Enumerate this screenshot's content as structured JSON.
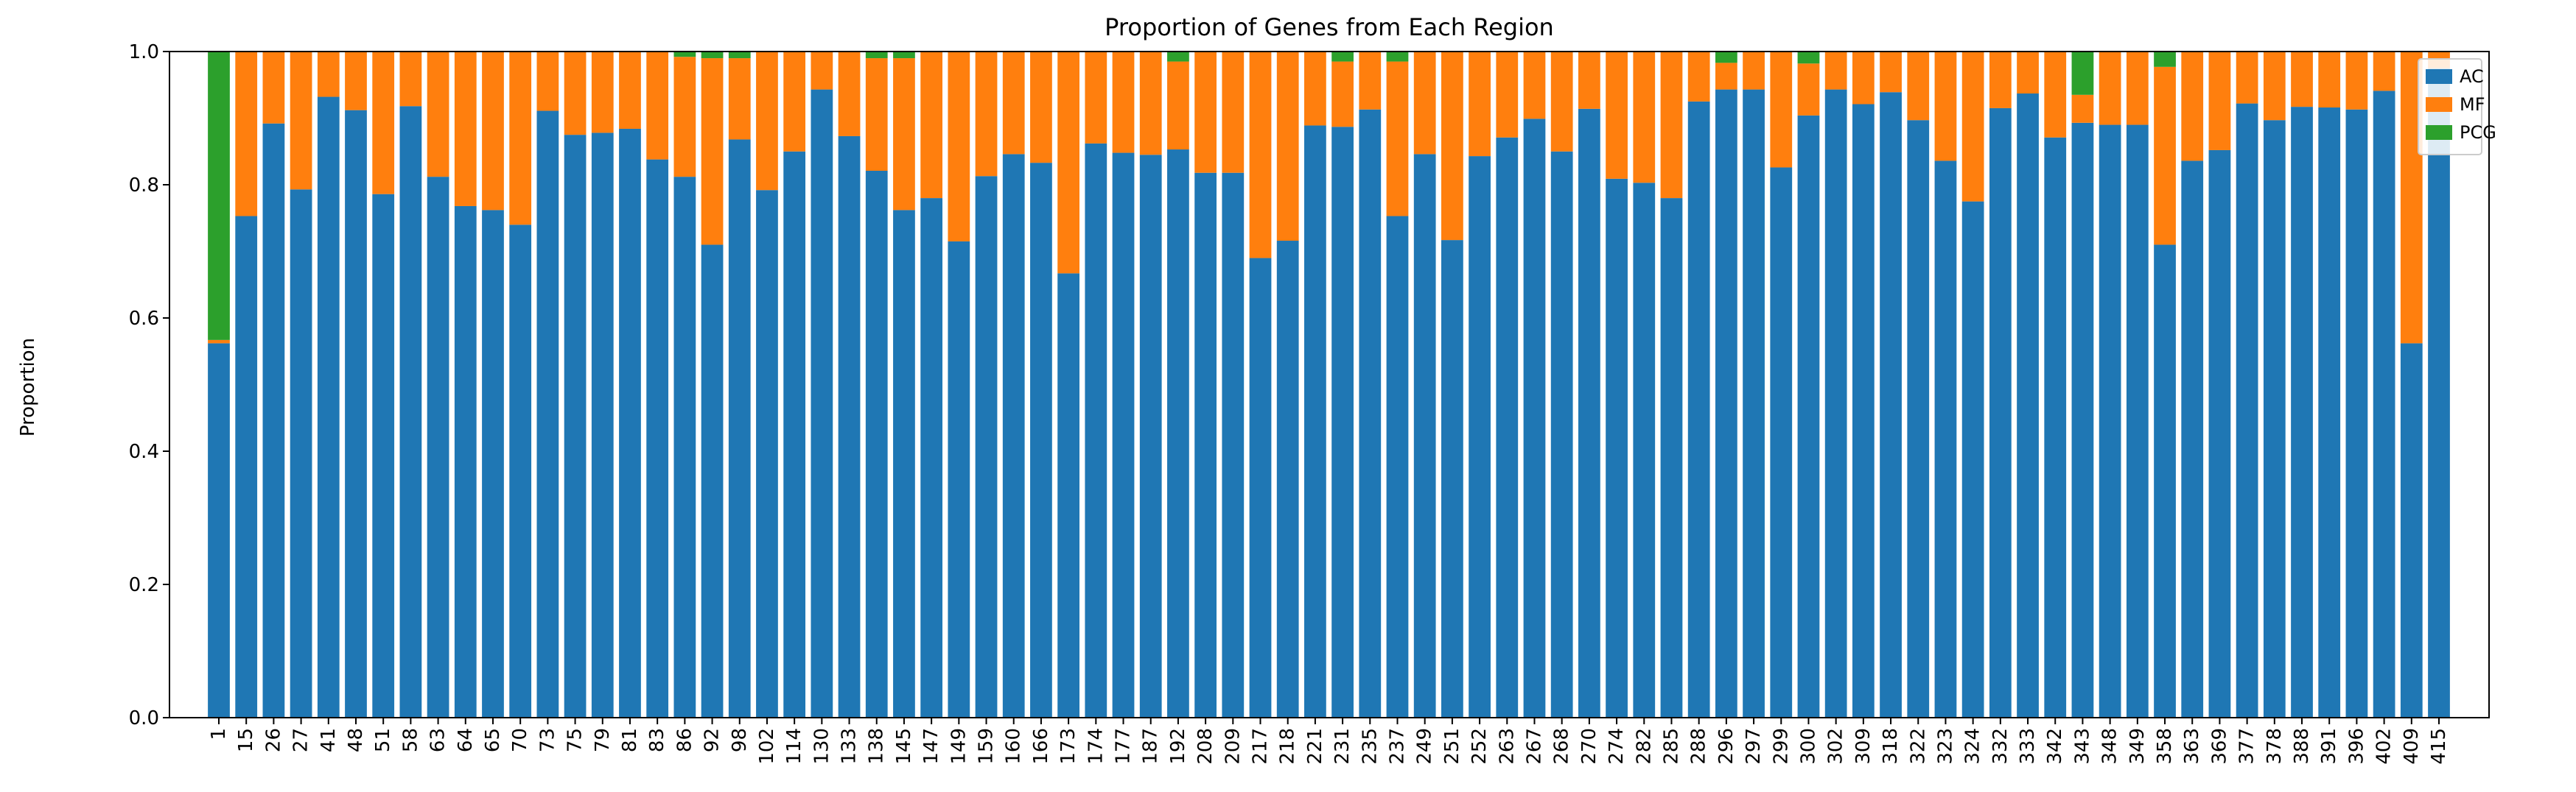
{
  "chart_data": {
    "type": "bar",
    "stacked": true,
    "title": "Proportion of Genes from Each Region",
    "xlabel": "",
    "ylabel": "Proportion",
    "ylim": [
      0,
      1.0
    ],
    "yticks": [
      "0.0",
      "0.2",
      "0.4",
      "0.6",
      "0.8",
      "1.0"
    ],
    "grid": false,
    "legend_position": "top-right",
    "categories": [
      "1",
      "15",
      "26",
      "27",
      "41",
      "48",
      "51",
      "58",
      "63",
      "64",
      "65",
      "70",
      "73",
      "75",
      "79",
      "81",
      "83",
      "86",
      "92",
      "98",
      "102",
      "114",
      "130",
      "133",
      "138",
      "145",
      "147",
      "149",
      "159",
      "160",
      "166",
      "173",
      "174",
      "177",
      "187",
      "192",
      "208",
      "209",
      "217",
      "218",
      "221",
      "231",
      "235",
      "237",
      "249",
      "251",
      "252",
      "263",
      "267",
      "268",
      "270",
      "274",
      "282",
      "285",
      "288",
      "296",
      "297",
      "299",
      "300",
      "302",
      "309",
      "318",
      "322",
      "323",
      "324",
      "332",
      "333",
      "342",
      "343",
      "348",
      "349",
      "358",
      "363",
      "369",
      "377",
      "378",
      "388",
      "391",
      "396",
      "402",
      "409",
      "415"
    ],
    "series": [
      {
        "name": "AC",
        "color": "#1f77b4",
        "values": [
          0.562,
          0.753,
          0.892,
          0.793,
          0.932,
          0.912,
          0.786,
          0.918,
          0.812,
          0.768,
          0.762,
          0.74,
          0.911,
          0.875,
          0.878,
          0.884,
          0.838,
          0.812,
          0.71,
          0.868,
          0.792,
          0.85,
          0.943,
          0.873,
          0.821,
          0.762,
          0.78,
          0.715,
          0.813,
          0.846,
          0.833,
          0.667,
          0.862,
          0.848,
          0.845,
          0.853,
          0.818,
          0.818,
          0.69,
          0.716,
          0.889,
          0.887,
          0.913,
          0.753,
          0.846,
          0.717,
          0.843,
          0.871,
          0.899,
          0.85,
          0.914,
          0.809,
          0.803,
          0.78,
          0.925,
          0.943,
          0.943,
          0.826,
          0.904,
          0.943,
          0.921,
          0.939,
          0.897,
          0.836,
          0.775,
          0.915,
          0.937,
          0.871,
          0.893,
          0.89,
          0.89,
          0.71,
          0.836,
          0.852,
          0.922,
          0.897,
          0.917,
          0.916,
          0.913,
          0.941,
          0.562,
          0.975
        ]
      },
      {
        "name": "MF",
        "color": "#ff7f0e",
        "values": [
          0.005,
          0.247,
          0.108,
          0.207,
          0.068,
          0.088,
          0.214,
          0.082,
          0.188,
          0.232,
          0.238,
          0.26,
          0.089,
          0.125,
          0.122,
          0.116,
          0.162,
          0.18,
          0.28,
          0.122,
          0.208,
          0.15,
          0.057,
          0.127,
          0.169,
          0.228,
          0.22,
          0.285,
          0.187,
          0.154,
          0.167,
          0.333,
          0.138,
          0.152,
          0.155,
          0.132,
          0.182,
          0.182,
          0.31,
          0.284,
          0.111,
          0.098,
          0.087,
          0.232,
          0.154,
          0.283,
          0.157,
          0.129,
          0.101,
          0.15,
          0.086,
          0.191,
          0.197,
          0.22,
          0.075,
          0.04,
          0.057,
          0.174,
          0.078,
          0.057,
          0.079,
          0.061,
          0.103,
          0.164,
          0.225,
          0.085,
          0.063,
          0.129,
          0.042,
          0.11,
          0.11,
          0.267,
          0.164,
          0.148,
          0.078,
          0.103,
          0.083,
          0.084,
          0.087,
          0.059,
          0.438,
          0.025
        ]
      },
      {
        "name": "PCG",
        "color": "#2ca02c",
        "values": [
          0.433,
          0,
          0,
          0,
          0,
          0,
          0,
          0,
          0,
          0,
          0,
          0,
          0,
          0,
          0,
          0,
          0,
          0.008,
          0.01,
          0.01,
          0,
          0,
          0,
          0,
          0.01,
          0.01,
          0,
          0,
          0,
          0,
          0,
          0,
          0,
          0,
          0,
          0.015,
          0,
          0,
          0,
          0,
          0,
          0.015,
          0,
          0.015,
          0,
          0,
          0,
          0,
          0,
          0,
          0,
          0,
          0,
          0,
          0,
          0.017,
          0,
          0,
          0.018,
          0,
          0,
          0,
          0,
          0,
          0,
          0,
          0,
          0,
          0.065,
          0,
          0,
          0.023,
          0,
          0,
          0,
          0,
          0,
          0,
          0,
          0,
          0,
          0
        ]
      }
    ]
  }
}
